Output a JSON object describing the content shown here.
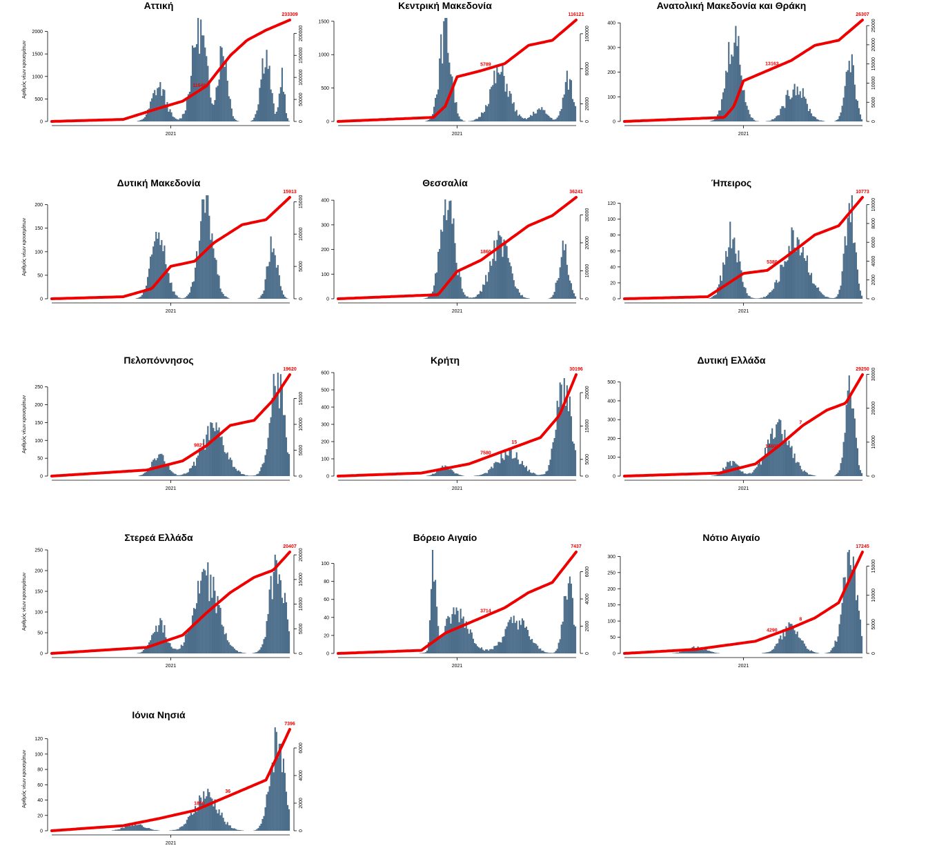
{
  "colors": {
    "bars": "#4d6e8b",
    "cumulative": "#ee0000",
    "axis": "#000000"
  },
  "chart_data": [
    {
      "type": "bar",
      "title": "Αττική",
      "ylabel": "Αριθμός νέων κρουσμάτων",
      "xlabel": "",
      "x_tick_label": "2021",
      "ylim": [
        0,
        2300
      ],
      "y_ticks": [
        0,
        500,
        1000,
        1500,
        2000
      ],
      "y2lim": [
        0,
        235000
      ],
      "y2_ticks": [
        0,
        50000,
        100000,
        150000,
        200000
      ],
      "final_cumulative": "233309",
      "mid_labels": [
        "11648"
      ],
      "peaks": [
        [
          0.45,
          850,
          0.03
        ],
        [
          0.62,
          2300,
          0.03
        ],
        [
          0.72,
          1800,
          0.02
        ],
        [
          0.9,
          1700,
          0.02
        ],
        [
          0.97,
          1200,
          0.01
        ]
      ],
      "cum_points": [
        [
          0,
          0
        ],
        [
          0.3,
          2
        ],
        [
          0.45,
          13
        ],
        [
          0.55,
          20
        ],
        [
          0.65,
          35
        ],
        [
          0.75,
          65
        ],
        [
          0.82,
          80
        ],
        [
          0.9,
          90
        ],
        [
          1,
          100
        ]
      ]
    },
    {
      "type": "bar",
      "title": "Κεντρική Μακεδονία",
      "ylabel": "",
      "xlabel": "",
      "x_tick_label": "2021",
      "ylim": [
        0,
        1550
      ],
      "y_ticks": [
        0,
        500,
        1000,
        1500
      ],
      "y2lim": [
        0,
        118000
      ],
      "y2_ticks": [
        0,
        20000,
        60000,
        100000
      ],
      "final_cumulative": "116121",
      "mid_labels": [
        "5789"
      ],
      "peaks": [
        [
          0.45,
          1500,
          0.025
        ],
        [
          0.68,
          800,
          0.04
        ],
        [
          0.85,
          200,
          0.03
        ],
        [
          0.97,
          700,
          0.02
        ]
      ],
      "cum_points": [
        [
          0,
          0
        ],
        [
          0.4,
          4
        ],
        [
          0.45,
          15
        ],
        [
          0.5,
          44
        ],
        [
          0.6,
          50
        ],
        [
          0.7,
          57
        ],
        [
          0.8,
          75
        ],
        [
          0.9,
          80
        ],
        [
          1,
          100
        ]
      ]
    },
    {
      "type": "bar",
      "title": "Ανατολική Μακεδονία και Θράκη",
      "ylabel": "",
      "xlabel": "",
      "x_tick_label": "2021",
      "ylim": [
        0,
        420
      ],
      "y_ticks": [
        0,
        100,
        200,
        300,
        400
      ],
      "y2lim": [
        0,
        27000
      ],
      "y2_ticks": [
        0,
        5000,
        10000,
        15000,
        20000,
        25000
      ],
      "final_cumulative": "26307",
      "mid_labels": [
        "13163"
      ],
      "peaks": [
        [
          0.46,
          400,
          0.03
        ],
        [
          0.72,
          160,
          0.04
        ],
        [
          0.95,
          290,
          0.02
        ]
      ],
      "cum_points": [
        [
          0,
          0
        ],
        [
          0.42,
          4
        ],
        [
          0.46,
          15
        ],
        [
          0.5,
          40
        ],
        [
          0.6,
          50
        ],
        [
          0.7,
          60
        ],
        [
          0.8,
          75
        ],
        [
          0.9,
          80
        ],
        [
          1,
          100
        ]
      ]
    },
    {
      "type": "bar",
      "title": "Δυτική Μακεδονία",
      "ylabel": "Αριθμός νέων κρουσμάτων",
      "xlabel": "",
      "x_tick_label": "2021",
      "ylim": [
        0,
        220
      ],
      "y_ticks": [
        0,
        50,
        100,
        150,
        200
      ],
      "y2lim": [
        0,
        16000
      ],
      "y2_ticks": [
        0,
        5000,
        10000,
        15000
      ],
      "final_cumulative": "15913",
      "mid_labels": [],
      "peaks": [
        [
          0.45,
          160,
          0.03
        ],
        [
          0.65,
          220,
          0.03
        ],
        [
          0.93,
          130,
          0.02
        ]
      ],
      "cum_points": [
        [
          0,
          0
        ],
        [
          0.3,
          2
        ],
        [
          0.42,
          10
        ],
        [
          0.5,
          32
        ],
        [
          0.6,
          37
        ],
        [
          0.68,
          55
        ],
        [
          0.8,
          73
        ],
        [
          0.9,
          78
        ],
        [
          1,
          100
        ]
      ]
    },
    {
      "type": "bar",
      "title": "Θεσσαλία",
      "ylabel": "",
      "xlabel": "",
      "x_tick_label": "2021",
      "ylim": [
        0,
        420
      ],
      "y_ticks": [
        0,
        100,
        200,
        300,
        400
      ],
      "y2lim": [
        0,
        37000
      ],
      "y2_ticks": [
        0,
        10000,
        20000,
        30000
      ],
      "final_cumulative": "36241",
      "mid_labels": [
        "1860"
      ],
      "peaks": [
        [
          0.46,
          410,
          0.03
        ],
        [
          0.68,
          250,
          0.04
        ],
        [
          0.95,
          220,
          0.02
        ]
      ],
      "cum_points": [
        [
          0,
          0
        ],
        [
          0.42,
          4
        ],
        [
          0.5,
          27
        ],
        [
          0.6,
          38
        ],
        [
          0.7,
          55
        ],
        [
          0.8,
          72
        ],
        [
          0.9,
          82
        ],
        [
          1,
          100
        ]
      ]
    },
    {
      "type": "bar",
      "title": "Ήπειρος",
      "ylabel": "",
      "xlabel": "",
      "x_tick_label": "2021",
      "ylim": [
        0,
        130
      ],
      "y_ticks": [
        0,
        20,
        40,
        60,
        80,
        100,
        120
      ],
      "y2lim": [
        0,
        11000
      ],
      "y2_ticks": [
        0,
        2000,
        4000,
        6000,
        8000,
        10000
      ],
      "final_cumulative": "10773",
      "mid_labels": [
        "5380"
      ],
      "peaks": [
        [
          0.45,
          90,
          0.03
        ],
        [
          0.72,
          85,
          0.05
        ],
        [
          0.95,
          128,
          0.02
        ]
      ],
      "cum_points": [
        [
          0,
          0
        ],
        [
          0.35,
          2
        ],
        [
          0.5,
          25
        ],
        [
          0.6,
          28
        ],
        [
          0.7,
          45
        ],
        [
          0.8,
          63
        ],
        [
          0.9,
          72
        ],
        [
          1,
          100
        ]
      ]
    },
    {
      "type": "bar",
      "title": "Πελοπόννησος",
      "ylabel": "Αριθμός νέων κρουσμάτων",
      "xlabel": "",
      "x_tick_label": "2021",
      "ylim": [
        0,
        290
      ],
      "y_ticks": [
        0,
        50,
        100,
        150,
        200,
        250
      ],
      "y2lim": [
        0,
        20000
      ],
      "y2_ticks": [
        0,
        5000,
        10000,
        15000
      ],
      "final_cumulative": "19620",
      "mid_labels": [
        "9821"
      ],
      "peaks": [
        [
          0.45,
          70,
          0.03
        ],
        [
          0.68,
          140,
          0.05
        ],
        [
          0.95,
          290,
          0.03
        ]
      ],
      "cum_points": [
        [
          0,
          0
        ],
        [
          0.4,
          6
        ],
        [
          0.55,
          15
        ],
        [
          0.65,
          30
        ],
        [
          0.75,
          50
        ],
        [
          0.85,
          55
        ],
        [
          0.93,
          75
        ],
        [
          1,
          100
        ]
      ]
    },
    {
      "type": "bar",
      "title": "Κρήτη",
      "ylabel": "",
      "xlabel": "",
      "x_tick_label": "2021",
      "ylim": [
        0,
        600
      ],
      "y_ticks": [
        0,
        100,
        200,
        300,
        400,
        500,
        600
      ],
      "y2lim": [
        0,
        31000
      ],
      "y2_ticks": [
        0,
        5000,
        15000,
        25000
      ],
      "final_cumulative": "30196",
      "mid_labels": [
        "7580",
        "15"
      ],
      "peaks": [
        [
          0.45,
          60,
          0.03
        ],
        [
          0.72,
          150,
          0.05
        ],
        [
          0.95,
          590,
          0.03
        ]
      ],
      "cum_points": [
        [
          0,
          0
        ],
        [
          0.35,
          3
        ],
        [
          0.55,
          12
        ],
        [
          0.7,
          25
        ],
        [
          0.85,
          38
        ],
        [
          0.93,
          60
        ],
        [
          1,
          100
        ]
      ]
    },
    {
      "type": "bar",
      "title": "Δυτική Ελλάδα",
      "ylabel": "",
      "xlabel": "",
      "x_tick_label": "2021",
      "ylim": [
        0,
        550
      ],
      "y_ticks": [
        0,
        100,
        200,
        300,
        400,
        500
      ],
      "y2lim": [
        0,
        30500
      ],
      "y2_ticks": [
        0,
        10000,
        20000,
        30000
      ],
      "final_cumulative": "29250",
      "mid_labels": [
        "14602",
        "7"
      ],
      "peaks": [
        [
          0.45,
          80,
          0.03
        ],
        [
          0.65,
          270,
          0.05
        ],
        [
          0.95,
          520,
          0.02
        ]
      ],
      "cum_points": [
        [
          0,
          0
        ],
        [
          0.4,
          3
        ],
        [
          0.55,
          12
        ],
        [
          0.65,
          30
        ],
        [
          0.75,
          50
        ],
        [
          0.85,
          65
        ],
        [
          0.93,
          72
        ],
        [
          1,
          100
        ]
      ]
    },
    {
      "type": "bar",
      "title": "Στερεά Ελλάδα",
      "ylabel": "Αριθμός νέων κρουσμάτων",
      "xlabel": "",
      "x_tick_label": "2021",
      "ylim": [
        0,
        250
      ],
      "y_ticks": [
        0,
        50,
        100,
        150,
        200,
        250
      ],
      "y2lim": [
        0,
        21000
      ],
      "y2_ticks": [
        0,
        5000,
        10000,
        15000,
        20000
      ],
      "final_cumulative": "20407",
      "mid_labels": [],
      "peaks": [
        [
          0.45,
          80,
          0.03
        ],
        [
          0.65,
          200,
          0.05
        ],
        [
          0.95,
          250,
          0.03
        ]
      ],
      "cum_points": [
        [
          0,
          0
        ],
        [
          0.4,
          6
        ],
        [
          0.55,
          18
        ],
        [
          0.65,
          40
        ],
        [
          0.75,
          60
        ],
        [
          0.85,
          75
        ],
        [
          0.93,
          82
        ],
        [
          1,
          100
        ]
      ]
    },
    {
      "type": "bar",
      "title": "Βόρειο Αιγαίο",
      "ylabel": "",
      "xlabel": "",
      "x_tick_label": "2021",
      "ylim": [
        0,
        115
      ],
      "y_ticks": [
        0,
        20,
        40,
        60,
        80,
        100
      ],
      "y2lim": [
        0,
        7600
      ],
      "y2_ticks": [
        0,
        2000,
        4000,
        6000
      ],
      "final_cumulative": "7437",
      "mid_labels": [
        "3714"
      ],
      "peaks": [
        [
          0.4,
          110,
          0.01
        ],
        [
          0.5,
          50,
          0.05
        ],
        [
          0.75,
          40,
          0.05
        ],
        [
          0.97,
          90,
          0.02
        ]
      ],
      "cum_points": [
        [
          0,
          0
        ],
        [
          0.35,
          3
        ],
        [
          0.45,
          20
        ],
        [
          0.6,
          35
        ],
        [
          0.7,
          45
        ],
        [
          0.8,
          60
        ],
        [
          0.9,
          70
        ],
        [
          1,
          100
        ]
      ]
    },
    {
      "type": "bar",
      "title": "Νότιο Αιγαίο",
      "ylabel": "",
      "xlabel": "",
      "x_tick_label": "2021",
      "ylim": [
        0,
        320
      ],
      "y_ticks": [
        0,
        50,
        100,
        150,
        200,
        250,
        300
      ],
      "y2lim": [
        0,
        17800
      ],
      "y2_ticks": [
        0,
        5000,
        10000,
        15000
      ],
      "final_cumulative": "17245",
      "mid_labels": [
        "4290",
        "8"
      ],
      "peaks": [
        [
          0.3,
          20,
          0.04
        ],
        [
          0.7,
          90,
          0.04
        ],
        [
          0.95,
          310,
          0.03
        ]
      ],
      "cum_points": [
        [
          0,
          0
        ],
        [
          0.3,
          4
        ],
        [
          0.55,
          12
        ],
        [
          0.7,
          25
        ],
        [
          0.8,
          35
        ],
        [
          0.9,
          50
        ],
        [
          1,
          100
        ]
      ]
    },
    {
      "type": "bar",
      "title": "Ιόνια Νησιά",
      "ylabel": "Αριθμός νέων κρουσμάτων",
      "xlabel": "",
      "x_tick_label": "2021",
      "ylim": [
        0,
        135
      ],
      "y_ticks": [
        0,
        20,
        40,
        60,
        80,
        100,
        120
      ],
      "y2lim": [
        0,
        7500
      ],
      "y2_ticks": [
        0,
        2000,
        4000,
        6000
      ],
      "final_cumulative": "7396",
      "mid_labels": [
        "1850",
        "36"
      ],
      "peaks": [
        [
          0.35,
          10,
          0.04
        ],
        [
          0.65,
          50,
          0.05
        ],
        [
          0.95,
          130,
          0.03
        ]
      ],
      "cum_points": [
        [
          0,
          0
        ],
        [
          0.3,
          5
        ],
        [
          0.45,
          12
        ],
        [
          0.6,
          20
        ],
        [
          0.75,
          35
        ],
        [
          0.9,
          50
        ],
        [
          1,
          100
        ]
      ]
    }
  ]
}
